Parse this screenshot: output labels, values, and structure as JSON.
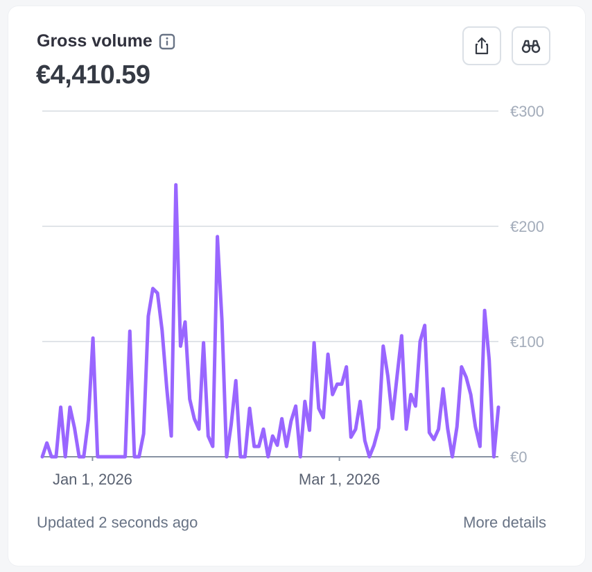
{
  "card": {
    "title": "Gross volume",
    "amount": "€4,410.59",
    "updated": "Updated 2 seconds ago",
    "more_details": "More details"
  },
  "icons": {
    "info": "info-icon",
    "share": "share-icon",
    "explore": "binoculars-icon"
  },
  "colors": {
    "line": "#9966ff",
    "grid": "#d5dbe1",
    "axis": "#8792a2"
  },
  "chart_data": {
    "type": "line",
    "x_range": [
      "2025-12-20",
      "2026-04-08"
    ],
    "ylim": [
      0,
      300
    ],
    "y_ticks": [
      {
        "value": 0,
        "label": "€0"
      },
      {
        "value": 100,
        "label": "€100"
      },
      {
        "value": 200,
        "label": "€200"
      },
      {
        "value": 300,
        "label": "€300"
      }
    ],
    "x_ticks": [
      {
        "date": "2026-01-01",
        "label": "Jan 1, 2026"
      },
      {
        "date": "2026-03-01",
        "label": "Mar 1, 2026"
      }
    ],
    "grid": true,
    "series": [
      {
        "values": [
          [
            0,
            0
          ],
          [
            1,
            12
          ],
          [
            2,
            0
          ],
          [
            3,
            0
          ],
          [
            4,
            43
          ],
          [
            5,
            0
          ],
          [
            6,
            43
          ],
          [
            7,
            25
          ],
          [
            8,
            0
          ],
          [
            9,
            0
          ],
          [
            10,
            32
          ],
          [
            11,
            103
          ],
          [
            12,
            0
          ],
          [
            13,
            0
          ],
          [
            14,
            0
          ],
          [
            15,
            0
          ],
          [
            16,
            0
          ],
          [
            17,
            0
          ],
          [
            18,
            0
          ],
          [
            19,
            109
          ],
          [
            20,
            0
          ],
          [
            21,
            0
          ],
          [
            22,
            20
          ],
          [
            23,
            122
          ],
          [
            24,
            146
          ],
          [
            25,
            142
          ],
          [
            26,
            110
          ],
          [
            27,
            60
          ],
          [
            28,
            18
          ],
          [
            29,
            236
          ],
          [
            30,
            96
          ],
          [
            31,
            117
          ],
          [
            32,
            50
          ],
          [
            33,
            33
          ],
          [
            34,
            24
          ],
          [
            35,
            99
          ],
          [
            36,
            18
          ],
          [
            37,
            9
          ],
          [
            38,
            191
          ],
          [
            39,
            118
          ],
          [
            40,
            0
          ],
          [
            41,
            28
          ],
          [
            42,
            66
          ],
          [
            43,
            0
          ],
          [
            44,
            0
          ],
          [
            45,
            42
          ],
          [
            46,
            9
          ],
          [
            47,
            9
          ],
          [
            48,
            24
          ],
          [
            49,
            0
          ],
          [
            50,
            18
          ],
          [
            51,
            10
          ],
          [
            52,
            33
          ],
          [
            53,
            9
          ],
          [
            54,
            31
          ],
          [
            55,
            44
          ],
          [
            56,
            0
          ],
          [
            57,
            48
          ],
          [
            58,
            23
          ],
          [
            59,
            99
          ],
          [
            60,
            42
          ],
          [
            61,
            34
          ],
          [
            62,
            89
          ],
          [
            63,
            54
          ],
          [
            64,
            63
          ],
          [
            65,
            63
          ],
          [
            66,
            78
          ],
          [
            67,
            17
          ],
          [
            68,
            24
          ],
          [
            69,
            48
          ],
          [
            70,
            14
          ],
          [
            71,
            0
          ],
          [
            72,
            10
          ],
          [
            73,
            25
          ],
          [
            74,
            96
          ],
          [
            75,
            70
          ],
          [
            76,
            33
          ],
          [
            77,
            70
          ],
          [
            78,
            105
          ],
          [
            79,
            24
          ],
          [
            80,
            54
          ],
          [
            81,
            44
          ],
          [
            82,
            100
          ],
          [
            83,
            114
          ],
          [
            84,
            21
          ],
          [
            85,
            15
          ],
          [
            86,
            24
          ],
          [
            87,
            59
          ],
          [
            88,
            24
          ],
          [
            89,
            0
          ],
          [
            90,
            26
          ],
          [
            91,
            78
          ],
          [
            92,
            69
          ],
          [
            93,
            54
          ],
          [
            94,
            26
          ],
          [
            95,
            9
          ],
          [
            96,
            127
          ],
          [
            97,
            84
          ],
          [
            98,
            0
          ],
          [
            99,
            43
          ]
        ]
      }
    ]
  }
}
